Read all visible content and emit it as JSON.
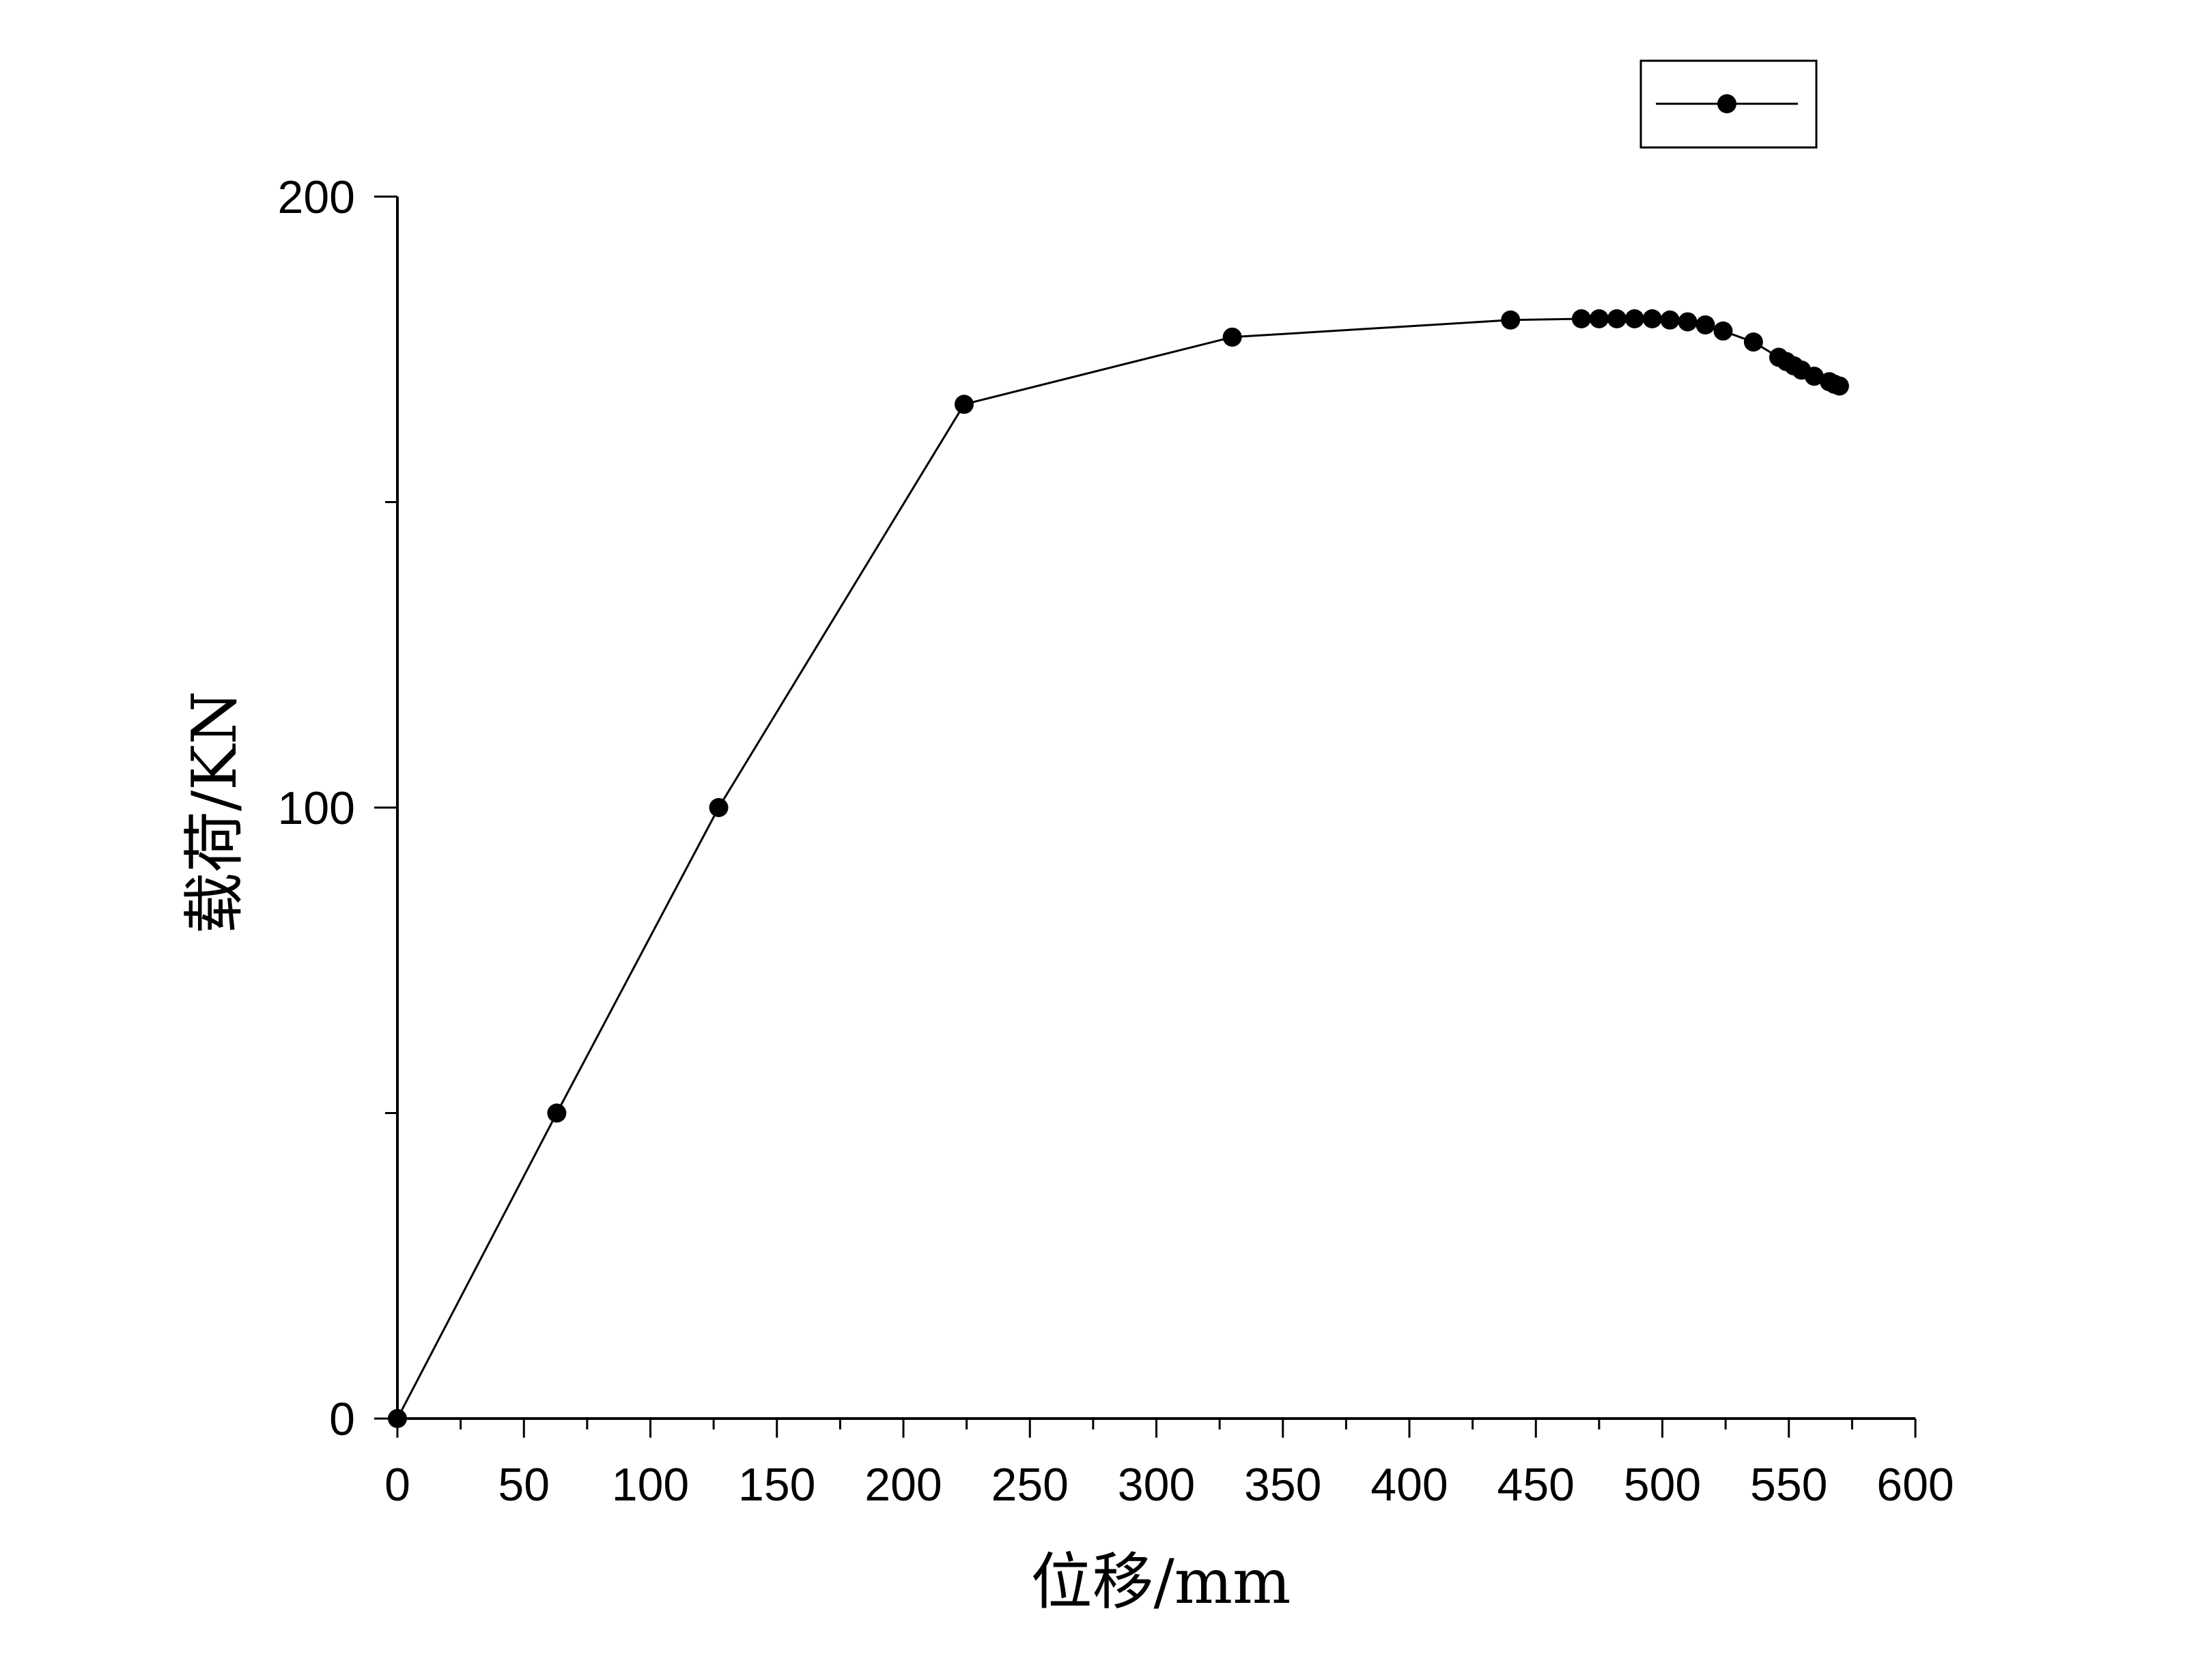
{
  "chart_data": {
    "type": "line",
    "title": "",
    "xlabel": "位移/mm",
    "ylabel": "载荷/KN",
    "xlim": [
      0,
      600
    ],
    "ylim": [
      0,
      200
    ],
    "x_ticks": [
      "0",
      "50",
      "100",
      "150",
      "200",
      "250",
      "300",
      "350",
      "400",
      "450",
      "500",
      "550",
      "600"
    ],
    "y_ticks": [
      "0",
      "100",
      "200"
    ],
    "grid": false,
    "legend": "top-right",
    "series": [
      {
        "color": "#000000",
        "marker": "circle",
        "x": [
          0,
          63,
          127,
          224,
          330,
          440,
          468,
          475,
          482,
          489,
          496,
          503,
          510,
          517,
          524,
          536,
          546,
          549,
          552,
          555,
          560,
          566,
          568,
          570
        ],
        "y": [
          0,
          50,
          100,
          166,
          177,
          179.8,
          180,
          180,
          180,
          180,
          180,
          179.8,
          179.5,
          179,
          178,
          176.2,
          173.7,
          173,
          172.3,
          171.6,
          170.6,
          169.7,
          169.3,
          169
        ]
      }
    ]
  }
}
